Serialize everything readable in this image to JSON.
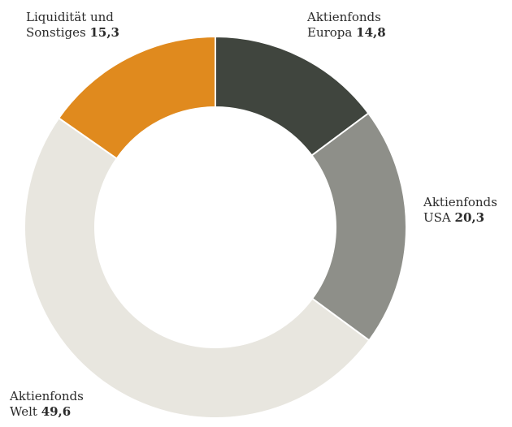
{
  "chart_data": {
    "type": "pie",
    "variant": "donut",
    "slices": [
      {
        "line1": "Aktienfonds",
        "line2": "Europa",
        "value": 14.8,
        "value_label": "14,8",
        "color": "#40453e"
      },
      {
        "line1": "Aktienfonds",
        "line2": "USA",
        "value": 20.3,
        "value_label": "20,3",
        "color": "#8e8f89"
      },
      {
        "line1": "Aktienfonds",
        "line2": "Welt",
        "value": 49.6,
        "value_label": "49,6",
        "color": "#e8e6df"
      },
      {
        "line1": "Liquidität und",
        "line2": "Sonstiges",
        "value": 15.3,
        "value_label": "15,3",
        "color": "#e08a1e"
      }
    ]
  }
}
